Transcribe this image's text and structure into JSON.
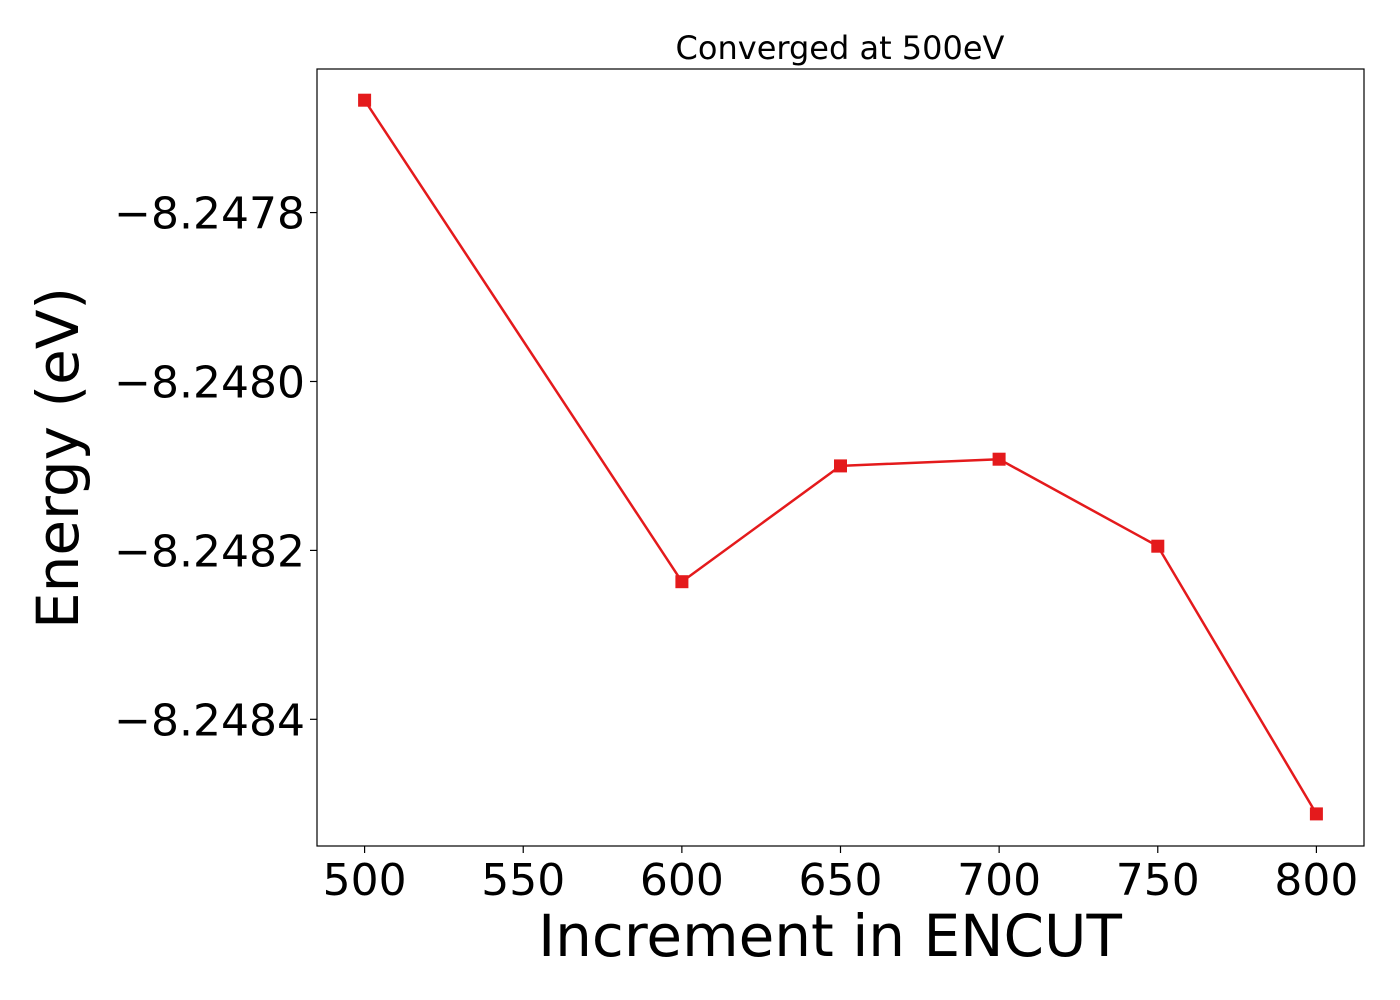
{
  "chart_data": {
    "type": "line",
    "title": "Converged at 500eV",
    "xlabel": "Increment in ENCUT",
    "ylabel": "Energy (eV)",
    "x": [
      500,
      600,
      650,
      700,
      750,
      800
    ],
    "series": [
      {
        "values": [
          -8.247667,
          -8.248237,
          -8.2481,
          -8.248092,
          -8.248195,
          -8.248512
        ],
        "color": "#e41a1c",
        "marker": "square"
      }
    ],
    "xticks": [
      500,
      550,
      600,
      650,
      700,
      750,
      800
    ],
    "xtick_labels": [
      "500",
      "550",
      "600",
      "650",
      "700",
      "750",
      "800"
    ],
    "yticks": [
      -8.2478,
      -8.248,
      -8.2482,
      -8.2484
    ],
    "ytick_labels": [
      "−8.2478",
      "−8.2480",
      "−8.2482",
      "−8.2484"
    ],
    "xlim": [
      485,
      815
    ],
    "ylim": [
      -8.24855,
      -8.24763
    ],
    "grid": false,
    "legend": false
  }
}
